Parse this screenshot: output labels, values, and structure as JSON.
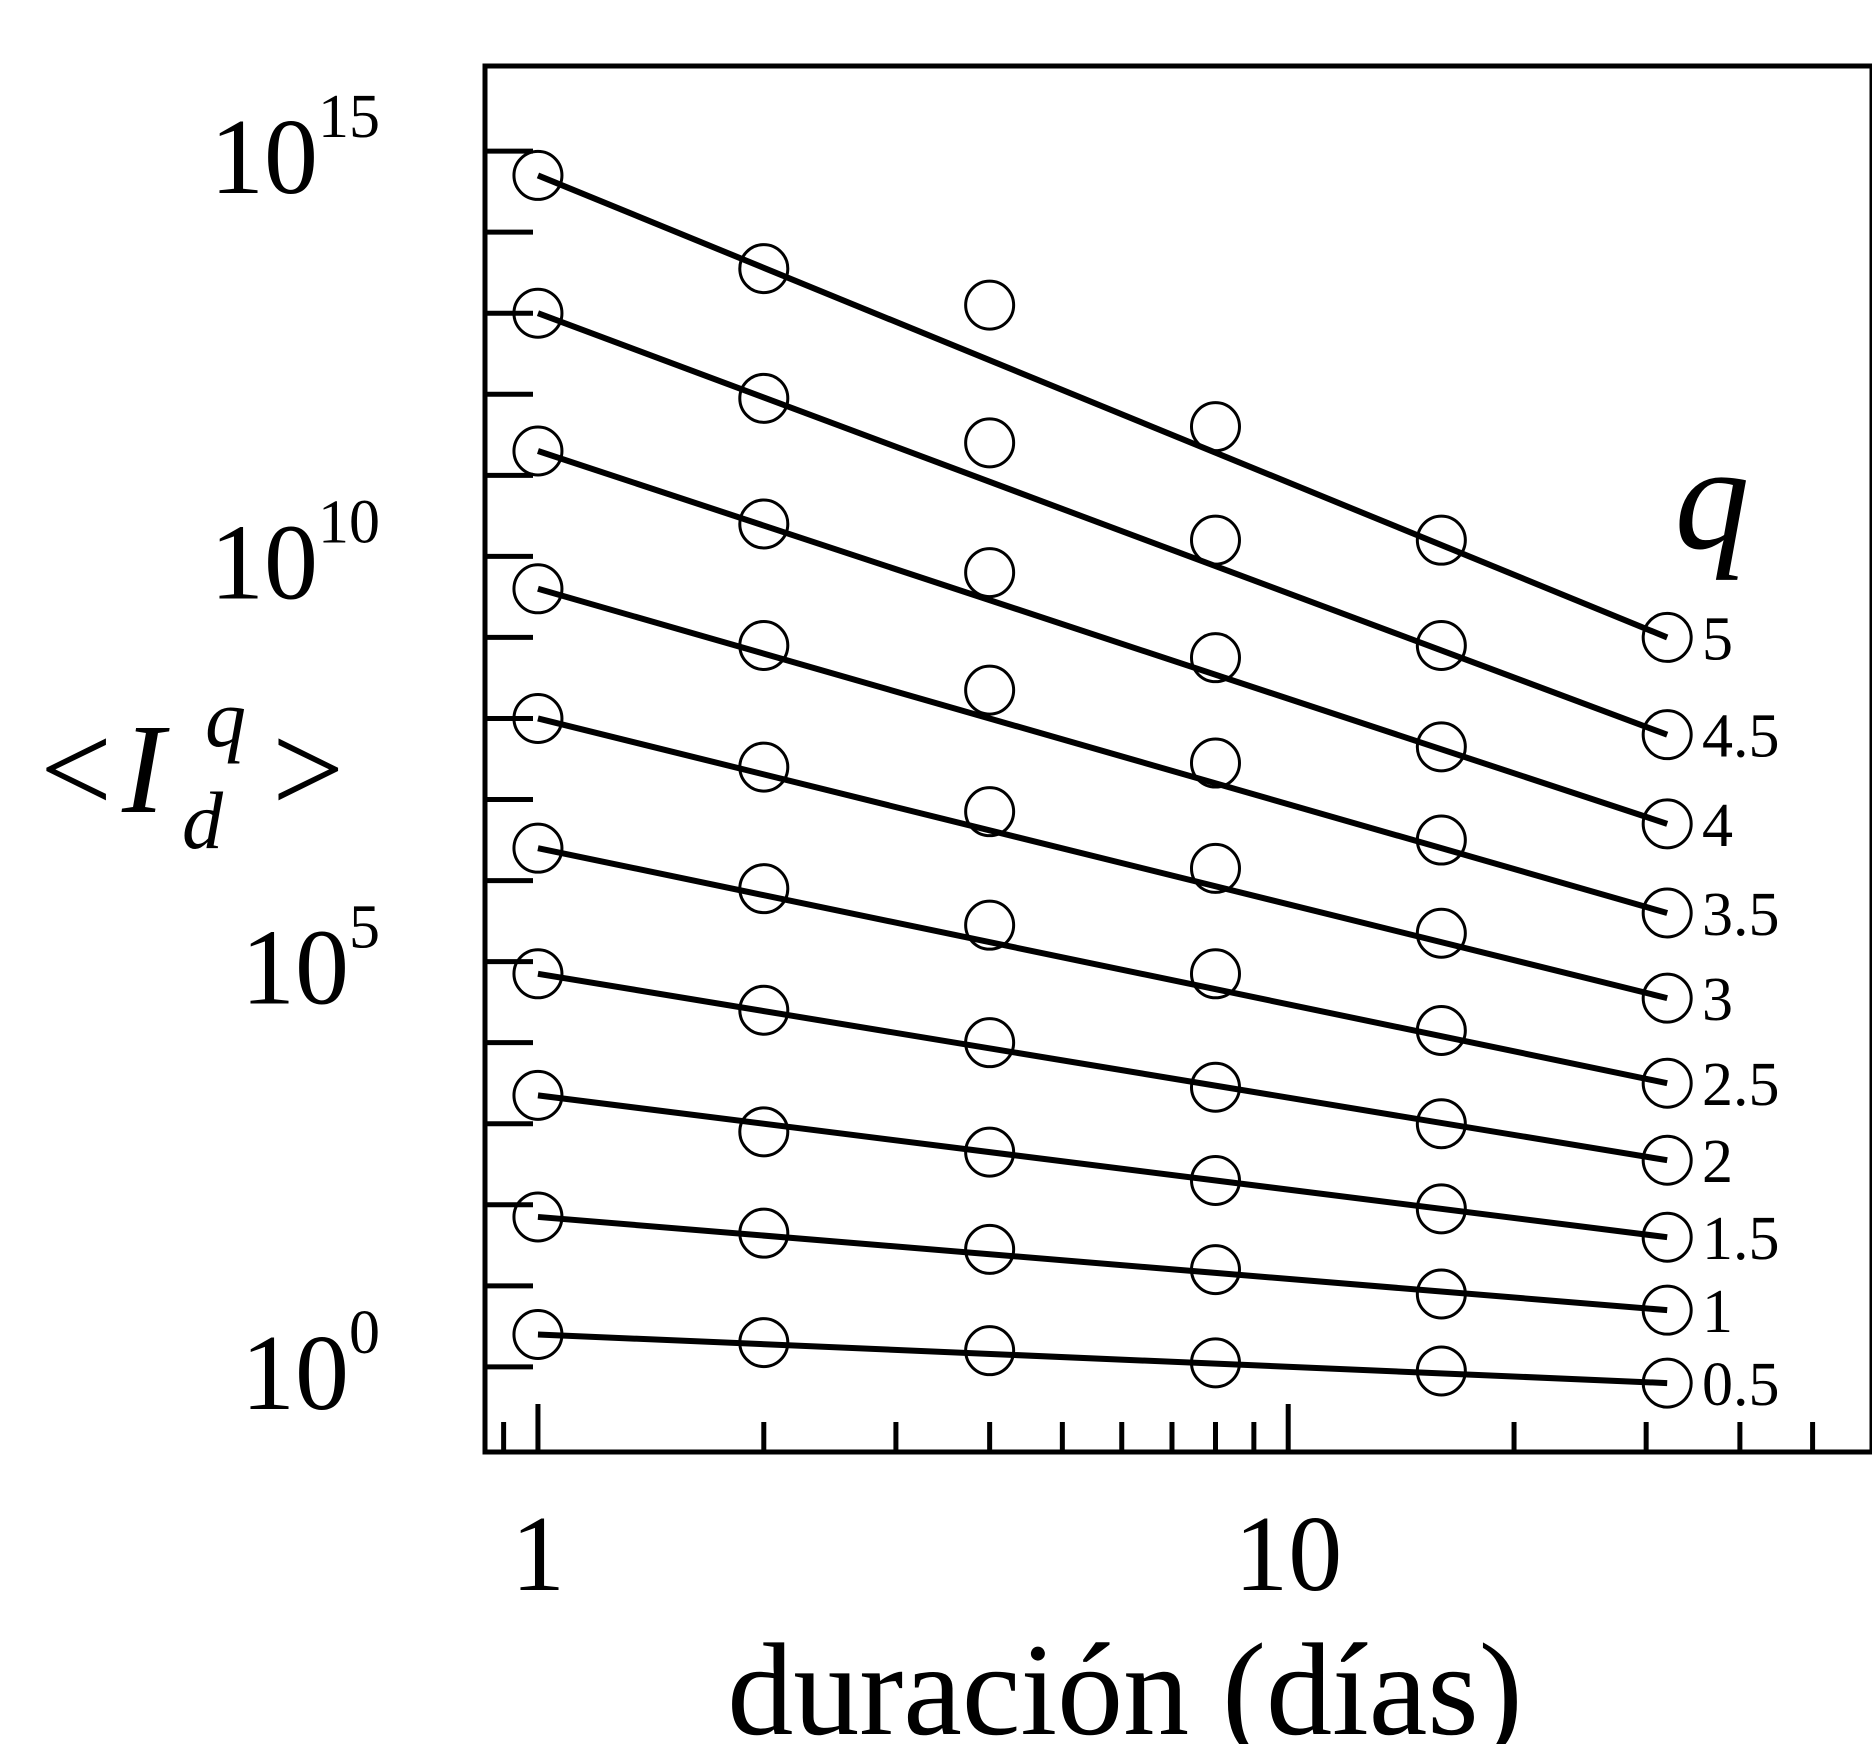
{
  "chart_data": {
    "type": "scatter",
    "xlabel": "duración (días)",
    "ylabel": {
      "open": "<",
      "base": "I",
      "sup": "q",
      "sub": "d",
      "close": ">"
    },
    "x_scale": "log",
    "y_scale": "log",
    "xlim": [
      0.85,
      60
    ],
    "ylim_log10": [
      -1.05,
      16.05
    ],
    "grid": false,
    "legend_title": "q",
    "x_ticks": [
      {
        "value": 1,
        "label": "1"
      },
      {
        "value": 10,
        "label": "10"
      }
    ],
    "y_ticks": [
      {
        "exp": 0,
        "base": "10",
        "sup": "0"
      },
      {
        "exp": 5,
        "base": "10",
        "sup": "5"
      },
      {
        "exp": 10,
        "base": "10",
        "sup": "10"
      },
      {
        "exp": 15,
        "base": "10",
        "sup": "15"
      }
    ],
    "x": [
      1,
      2,
      4,
      8,
      16,
      32
    ],
    "series": [
      {
        "q": "0.5",
        "fit_log10": [
          0.4,
          -0.2
        ],
        "log10_values": [
          0.4,
          0.3,
          0.2,
          0.05,
          -0.05,
          -0.2
        ]
      },
      {
        "q": "1",
        "fit_log10": [
          1.85,
          0.7
        ],
        "log10_values": [
          1.85,
          1.65,
          1.45,
          1.2,
          0.9,
          0.7
        ]
      },
      {
        "q": "1.5",
        "fit_log10": [
          3.35,
          1.6
        ],
        "log10_values": [
          3.35,
          2.9,
          2.65,
          2.3,
          1.95,
          1.6
        ]
      },
      {
        "q": "2",
        "fit_log10": [
          4.85,
          2.55
        ],
        "log10_values": [
          4.85,
          4.4,
          4.0,
          3.45,
          3.0,
          2.55
        ]
      },
      {
        "q": "2.5",
        "fit_log10": [
          6.4,
          3.5
        ],
        "log10_values": [
          6.4,
          5.9,
          5.45,
          4.85,
          4.15,
          3.5
        ]
      },
      {
        "q": "3",
        "fit_log10": [
          8.0,
          4.55
        ],
        "log10_values": [
          8.0,
          7.4,
          6.85,
          6.15,
          5.35,
          4.55
        ]
      },
      {
        "q": "3.5",
        "fit_log10": [
          9.6,
          5.6
        ],
        "log10_values": [
          9.6,
          8.9,
          8.35,
          7.45,
          6.5,
          5.6
        ]
      },
      {
        "q": "4",
        "fit_log10": [
          11.3,
          6.7
        ],
        "log10_values": [
          11.3,
          10.4,
          9.8,
          8.75,
          7.65,
          6.7
        ]
      },
      {
        "q": "4.5",
        "fit_log10": [
          13.0,
          7.8
        ],
        "log10_values": [
          13.0,
          11.95,
          11.4,
          10.2,
          8.9,
          7.8
        ]
      },
      {
        "q": "5",
        "fit_log10": [
          14.7,
          9.0
        ],
        "log10_values": [
          14.7,
          13.55,
          13.1,
          11.6,
          10.2,
          9.0
        ]
      }
    ]
  }
}
